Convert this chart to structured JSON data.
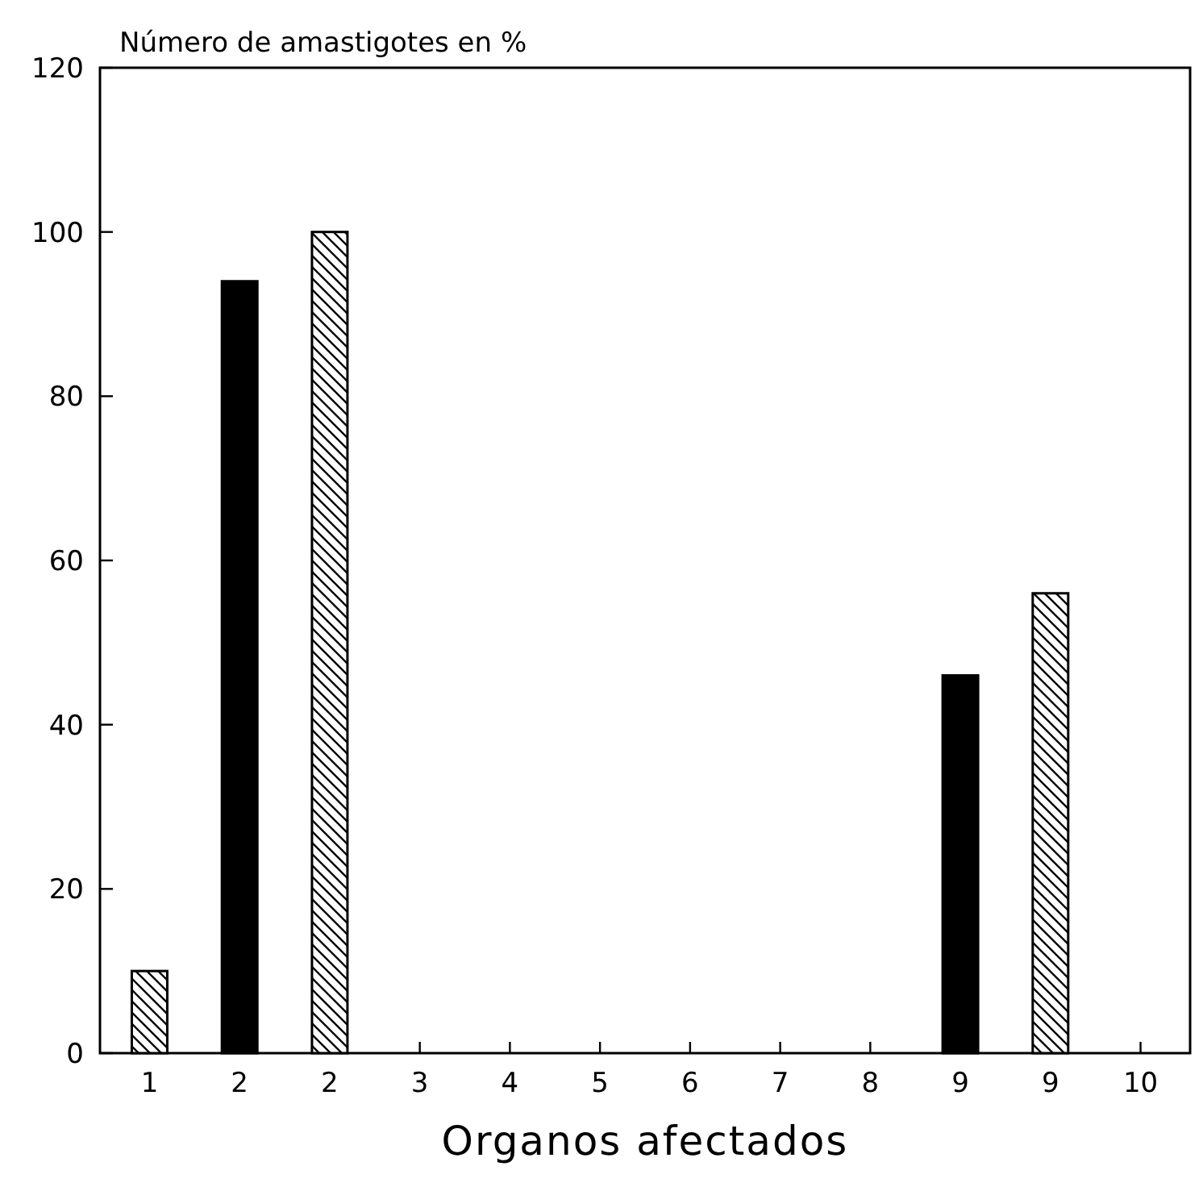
{
  "chart_data": {
    "type": "bar",
    "ylabel": "Número de amastigotes en %",
    "xlabel": "Organos afectados",
    "categories": [
      "1",
      "2",
      "2",
      "3",
      "4",
      "5",
      "6",
      "7",
      "8",
      "9",
      "9",
      "10"
    ],
    "series": [
      {
        "color": "#000000",
        "values": [
          null,
          94,
          null,
          null,
          null,
          null,
          null,
          null,
          null,
          46,
          null,
          null
        ]
      },
      {
        "color": "#000000",
        "values": [
          10,
          null,
          100,
          null,
          null,
          null,
          null,
          null,
          null,
          null,
          56,
          null
        ]
      }
    ],
    "ylim": [
      0,
      120
    ],
    "yticks": [
      0,
      20,
      40,
      60,
      80,
      100,
      120
    ],
    "grid": false
  }
}
